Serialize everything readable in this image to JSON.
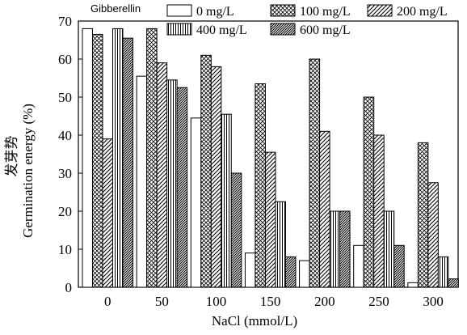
{
  "chart_data": {
    "type": "bar",
    "legend_title": "Gibberellin",
    "categories": [
      "0",
      "50",
      "100",
      "150",
      "200",
      "250",
      "300"
    ],
    "series": [
      {
        "name": "0 mg/L",
        "pattern": "solid",
        "values": [
          68,
          55.5,
          44.5,
          9,
          7,
          11,
          1.2
        ]
      },
      {
        "name": "100 mg/L",
        "pattern": "crosshatch",
        "values": [
          66.5,
          68,
          61,
          53.5,
          60,
          50,
          38
        ]
      },
      {
        "name": "200 mg/L",
        "pattern": "diagonal",
        "values": [
          39,
          59,
          58,
          35.5,
          41,
          40,
          27.5
        ]
      },
      {
        "name": "400 mg/L",
        "pattern": "vertical",
        "values": [
          68,
          54.5,
          45.5,
          22.5,
          20,
          20,
          8
        ]
      },
      {
        "name": "600 mg/L",
        "pattern": "dense-diagonal",
        "values": [
          65.5,
          52.5,
          30,
          8,
          20,
          11,
          2.2
        ]
      }
    ],
    "xlabel": "NaCl (mmol/L)",
    "ylabel_cn": "发芽势",
    "ylabel": "Germination energy (%)",
    "ylim": [
      0,
      70
    ],
    "yticks": [
      0,
      10,
      20,
      30,
      40,
      50,
      60,
      70
    ],
    "grid": false,
    "legend_position": "top"
  }
}
